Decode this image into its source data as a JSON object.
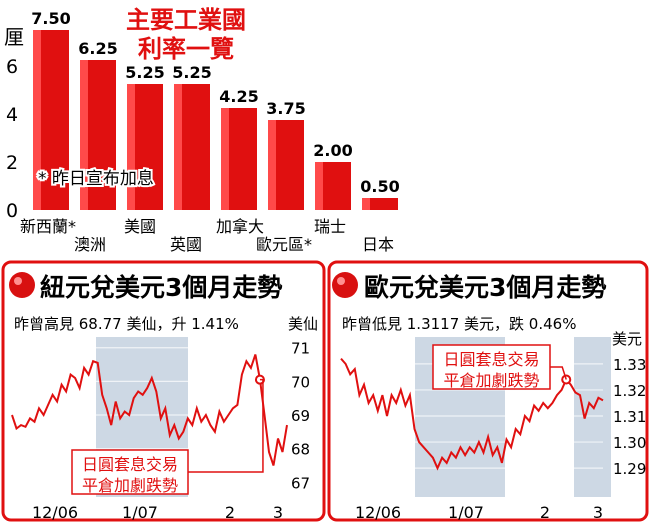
{
  "chart_data": [
    {
      "type": "bar",
      "title": "主要工業國",
      "subtitle": "利率一覽",
      "ylabel": "厘",
      "ylim": [
        0,
        8
      ],
      "yticks": [
        "0",
        "2",
        "4",
        "6"
      ],
      "categories": [
        "新西蘭*",
        "澳洲",
        "美國",
        "英國",
        "加拿大",
        "歐元區*",
        "瑞士",
        "日本"
      ],
      "values": [
        7.5,
        6.25,
        5.25,
        5.25,
        4.25,
        3.75,
        2.0,
        0.5
      ],
      "value_labels": [
        "7.50",
        "6.25",
        "5.25",
        "5.25",
        "4.25",
        "3.75",
        "2.00",
        "0.50"
      ],
      "footnote": "* 昨日宣布加息",
      "bar_color": "#e01010"
    },
    {
      "type": "line",
      "title": "紐元兌美元3個月走勢",
      "info": "昨曾高見 68.77 美仙，升 1.41%",
      "yunit": "美仙",
      "ylim": [
        66.8,
        71.2
      ],
      "yticks": [
        "71",
        "70",
        "69",
        "68",
        "67"
      ],
      "xticks": [
        "12/06",
        "1/07",
        "2",
        "3"
      ],
      "annotation": [
        "日圓套息交易",
        "平倉加劇跌勢"
      ],
      "line_color": "#e01010",
      "values": [
        69.0,
        68.6,
        68.7,
        68.65,
        68.9,
        68.8,
        69.2,
        69.0,
        69.3,
        69.6,
        69.4,
        69.9,
        69.7,
        70.2,
        70.1,
        69.8,
        70.4,
        70.2,
        70.6,
        70.55,
        69.6,
        69.2,
        68.7,
        69.4,
        68.9,
        69.1,
        69.0,
        69.5,
        69.7,
        69.6,
        69.8,
        70.1,
        69.7,
        68.9,
        69.2,
        68.4,
        68.7,
        68.3,
        68.5,
        68.9,
        68.7,
        69.2,
        68.8,
        69.0,
        68.7,
        68.5,
        69.1,
        68.8,
        69.0,
        69.2,
        69.3,
        70.2,
        70.6,
        70.4,
        70.8,
        70.05,
        69.0,
        67.9,
        67.5,
        68.3,
        67.9,
        68.7
      ]
    },
    {
      "type": "line",
      "title": "歐元兌美元3個月走勢",
      "info": "昨曾低見 1.3117 美元，跌 0.46%",
      "yunit": "美元",
      "ylim": [
        1.282,
        1.338
      ],
      "yticks": [
        "1.33",
        "1.32",
        "1.31",
        "1.30",
        "1.29"
      ],
      "xticks": [
        "12/06",
        "1/07",
        "2",
        "3"
      ],
      "annotation": [
        "日圓套息交易",
        "平倉加劇跌勢"
      ],
      "line_color": "#e01010",
      "values": [
        1.332,
        1.33,
        1.326,
        1.328,
        1.318,
        1.322,
        1.315,
        1.318,
        1.312,
        1.318,
        1.31,
        1.318,
        1.315,
        1.32,
        1.314,
        1.318,
        1.305,
        1.3,
        1.298,
        1.296,
        1.294,
        1.29,
        1.294,
        1.292,
        1.296,
        1.294,
        1.298,
        1.295,
        1.298,
        1.296,
        1.3,
        1.296,
        1.302,
        1.295,
        1.298,
        1.292,
        1.301,
        1.298,
        1.305,
        1.303,
        1.31,
        1.308,
        1.314,
        1.312,
        1.315,
        1.313,
        1.315,
        1.318,
        1.32,
        1.324,
        1.322,
        1.319,
        1.318,
        1.309,
        1.315,
        1.313,
        1.317,
        1.316
      ]
    }
  ]
}
